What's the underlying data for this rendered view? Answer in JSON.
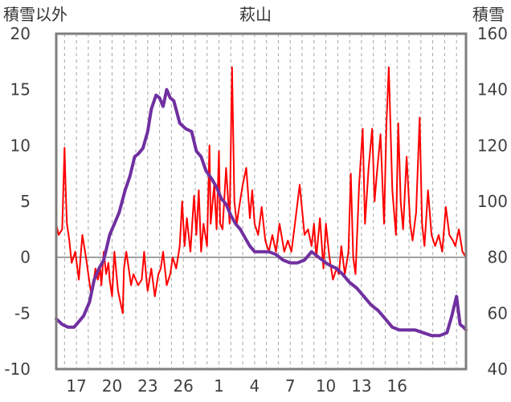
{
  "chart_data": {
    "type": "line",
    "title": "萩山",
    "y_left_label": "積雪以外",
    "y_right_label": "積雪",
    "x_ticks": [
      "17",
      "20",
      "23",
      "26",
      "1",
      "4",
      "7",
      "10",
      "13",
      "16"
    ],
    "y_left_ticks": [
      "20",
      "15",
      "10",
      "5",
      "0",
      "-5",
      "-10"
    ],
    "y_right_ticks": [
      "160",
      "140",
      "120",
      "100",
      "80",
      "60",
      "40"
    ],
    "y_left_range": [
      -10,
      20
    ],
    "y_right_range": [
      40,
      160
    ],
    "x_range": [
      15.3,
      49.8
    ],
    "series_colors": [
      "#ff0000",
      "#7030a0"
    ],
    "series": [
      {
        "axis": "left",
        "x": [
          15.3,
          15.5,
          15.8,
          16.0,
          16.1,
          16.2,
          16.4,
          16.6,
          16.9,
          17.2,
          17.5,
          17.8,
          18.0,
          18.2,
          18.4,
          18.6,
          18.8,
          19.0,
          19.1,
          19.3,
          19.5,
          19.7,
          19.8,
          20.0,
          20.2,
          20.5,
          20.7,
          20.9,
          21.0,
          21.2,
          21.4,
          21.6,
          21.8,
          22.0,
          22.2,
          22.5,
          22.7,
          22.9,
          23.0,
          23.3,
          23.6,
          23.9,
          24.1,
          24.3,
          24.6,
          24.9,
          25.1,
          25.4,
          25.7,
          25.9,
          26.1,
          26.3,
          26.6,
          26.9,
          27.1,
          27.3,
          27.5,
          27.7,
          28.0,
          28.2,
          28.3,
          28.6,
          28.8,
          29.0,
          29.1,
          29.3,
          29.6,
          29.9,
          30.1,
          30.3,
          30.5,
          30.7,
          31.0,
          31.3,
          31.6,
          31.8,
          32.0,
          32.3,
          32.6,
          32.9,
          33.2,
          33.5,
          33.8,
          34.1,
          34.5,
          34.8,
          35.1,
          35.4,
          35.8,
          36.2,
          36.5,
          36.8,
          37.0,
          37.2,
          37.5,
          37.8,
          38.0,
          38.3,
          38.6,
          38.9,
          39.1,
          39.3,
          39.6,
          39.9,
          40.1,
          40.3,
          40.5,
          40.8,
          41.1,
          41.3,
          41.6,
          41.9,
          42.1,
          42.3,
          42.6,
          42.9,
          43.1,
          43.3,
          43.6,
          43.9,
          44.1,
          44.3,
          44.5,
          44.8,
          45.1,
          45.3,
          45.6,
          45.9,
          46.1,
          46.3,
          46.6,
          46.9,
          47.2,
          47.5,
          47.8,
          48.1,
          48.4,
          48.7,
          48.9,
          49.2,
          49.5,
          49.8
        ],
        "values": [
          3.0,
          2.0,
          2.5,
          9.8,
          6.0,
          3.0,
          1.5,
          -0.5,
          0.5,
          -2.0,
          2.0,
          0.0,
          -1.5,
          -3.0,
          -2.5,
          -1.0,
          -2.0,
          -1.0,
          -2.5,
          0.5,
          -1.5,
          -0.5,
          -2.0,
          -3.5,
          0.5,
          -3.0,
          -4.0,
          -5.0,
          -1.0,
          0.5,
          -1.0,
          -2.5,
          -1.5,
          -2.0,
          -2.5,
          -2.0,
          0.5,
          -2.0,
          -3.0,
          -1.0,
          -3.5,
          -1.5,
          -1.0,
          0.5,
          -2.5,
          -1.5,
          0.0,
          -1.0,
          1.0,
          5.0,
          1.0,
          3.5,
          0.5,
          5.5,
          2.0,
          6.0,
          0.5,
          3.0,
          1.0,
          10.0,
          3.0,
          6.5,
          2.5,
          9.5,
          3.0,
          2.5,
          8.0,
          3.0,
          17.0,
          5.0,
          3.0,
          4.5,
          6.5,
          8.0,
          3.5,
          6.0,
          3.0,
          2.0,
          4.5,
          1.5,
          0.5,
          2.0,
          0.5,
          3.0,
          0.5,
          1.5,
          0.5,
          3.0,
          6.5,
          2.0,
          2.5,
          1.0,
          3.0,
          0.0,
          3.5,
          -1.0,
          3.0,
          0.0,
          -2.0,
          -1.0,
          -1.5,
          1.0,
          -1.5,
          0.5,
          7.5,
          0.0,
          -1.5,
          6.5,
          11.5,
          3.0,
          8.0,
          11.5,
          5.0,
          7.5,
          11.0,
          3.0,
          12.0,
          17.0,
          6.0,
          2.0,
          12.0,
          5.0,
          2.5,
          9.0,
          3.0,
          1.5,
          4.0,
          12.5,
          3.0,
          1.0,
          6.0,
          2.0,
          1.0,
          2.0,
          0.5,
          4.5,
          2.0,
          1.5,
          1.0,
          2.5,
          0.5,
          0.0
        ],
        "color": "#ff0000"
      },
      {
        "axis": "right",
        "x": [
          15.3,
          15.8,
          16.3,
          16.8,
          17.2,
          17.6,
          18.1,
          18.5,
          18.9,
          19.3,
          19.8,
          20.2,
          20.6,
          21.1,
          21.5,
          21.9,
          22.2,
          22.6,
          23.0,
          23.3,
          23.7,
          24.0,
          24.3,
          24.6,
          24.9,
          25.2,
          25.7,
          26.2,
          26.7,
          27.1,
          27.5,
          27.9,
          28.4,
          28.8,
          29.2,
          29.6,
          30.0,
          30.4,
          30.8,
          31.2,
          31.6,
          32.0,
          32.6,
          33.2,
          33.8,
          34.4,
          35.0,
          35.6,
          36.2,
          36.8,
          37.1,
          37.4,
          37.7,
          38.0,
          38.4,
          38.9,
          39.4,
          40.0,
          40.6,
          41.2,
          41.8,
          42.4,
          43.0,
          43.6,
          44.2,
          44.8,
          45.5,
          46.2,
          46.9,
          47.6,
          48.2,
          48.6,
          49.0,
          49.3,
          49.6,
          49.8
        ],
        "values": [
          58,
          56,
          55,
          55,
          57,
          59,
          64,
          72,
          76,
          79,
          88,
          92,
          96,
          104,
          109,
          116,
          117,
          119,
          125,
          133,
          138,
          137,
          134,
          140,
          137,
          136,
          128,
          126,
          125,
          118,
          116,
          111,
          108,
          105,
          101,
          99,
          95,
          92,
          90,
          87,
          84,
          82,
          82,
          82,
          81,
          79,
          78,
          78,
          79,
          82,
          81,
          80,
          79,
          78,
          77,
          76,
          74,
          71,
          69,
          66,
          63,
          61,
          58,
          55,
          54,
          54,
          54,
          53,
          52,
          52,
          53,
          59,
          66,
          56,
          55,
          54
        ],
        "color": "#7030a0"
      }
    ]
  }
}
